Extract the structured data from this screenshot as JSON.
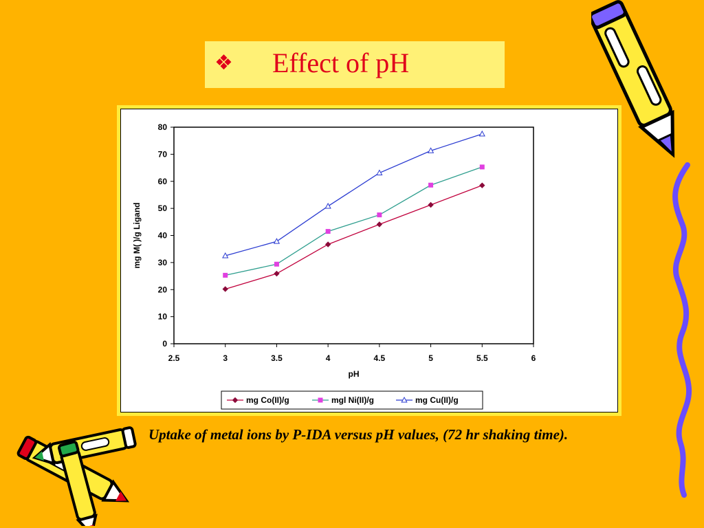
{
  "slide": {
    "title": "Effect of pH",
    "bullet": "❖",
    "caption": "Uptake of metal ions by P-IDA versus pH values, (72 hr shaking time)."
  },
  "colors": {
    "background": "#FFB300",
    "title_box": "#FFF176",
    "title_text": "#E0001B",
    "chart_frame": "#FFEB3B",
    "co": "#C0003C",
    "ni": "#2E9E8E",
    "cu": "#2A3BD1"
  },
  "chart_data": {
    "type": "line",
    "title": "",
    "xlabel": "pH",
    "ylabel": "mg M(  )/g Ligand",
    "xlim": [
      2.5,
      6
    ],
    "ylim": [
      0,
      80
    ],
    "x_ticks": [
      "2.5",
      "3",
      "3.5",
      "4",
      "4.5",
      "5",
      "5.5",
      "6"
    ],
    "y_ticks": [
      "0",
      "10",
      "20",
      "30",
      "40",
      "50",
      "60",
      "70",
      "80"
    ],
    "x": [
      3,
      3.5,
      4,
      4.5,
      5,
      5.5
    ],
    "legend_position": "bottom",
    "grid": false,
    "series": [
      {
        "name": "mg Co(II)/g",
        "values": [
          20.2,
          25.9,
          36.7,
          44.1,
          51.3,
          58.5
        ],
        "marker": "diamond",
        "color": "#C0003C",
        "marker_color": "#8B0A3A"
      },
      {
        "name": "mgl Ni(II)/g",
        "values": [
          25.3,
          29.4,
          41.5,
          47.6,
          58.6,
          65.3
        ],
        "marker": "square",
        "color": "#2E9E8E",
        "marker_color": "#E040E0"
      },
      {
        "name": "mg Cu(II)/g",
        "values": [
          32.5,
          37.8,
          50.8,
          63.1,
          71.3,
          77.5
        ],
        "marker": "triangle",
        "color": "#2A3BD1",
        "marker_color": "#2A3BD1"
      }
    ]
  }
}
